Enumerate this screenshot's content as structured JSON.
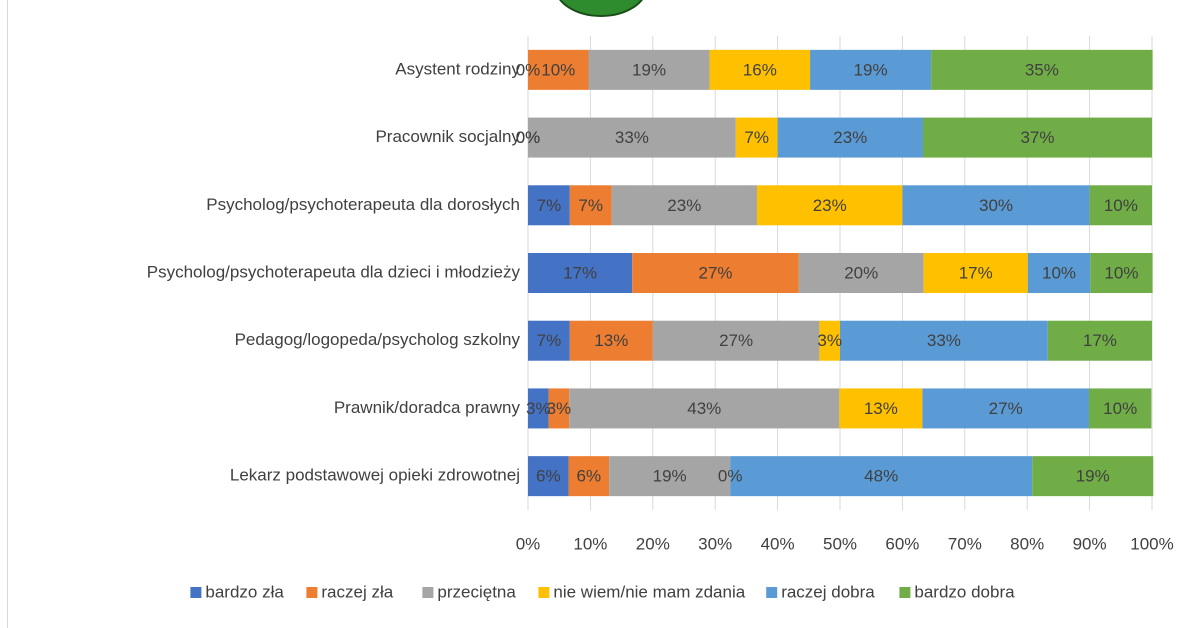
{
  "chart_data": {
    "type": "stacked_bar_horizontal",
    "categories": [
      "Asystent rodziny",
      "Pracownik socjalny",
      "Psycholog/psychoterapeuta dla dorosłych",
      "Psycholog/psychoterapeuta dla dzieci i młodzieży",
      "Pedagog/logopeda/psycholog szkolny",
      "Prawnik/doradca prawny",
      "Lekarz podstawowej opieki zdrowotnej"
    ],
    "series": [
      {
        "name": "bardzo zła",
        "color": "#4472c4",
        "values": [
          0,
          0,
          6.7,
          16.7,
          6.7,
          3.3,
          6.5
        ],
        "value_labels": [
          "0%",
          "0%",
          "7%",
          "17%",
          "7%",
          "3%",
          "6%"
        ]
      },
      {
        "name": "raczej zła",
        "color": "#ed7d31",
        "values": [
          9.7,
          0,
          6.7,
          26.7,
          13.3,
          3.3,
          6.5
        ],
        "value_labels": [
          "10%",
          "0%",
          "7%",
          "27%",
          "13%",
          "3%",
          "6%"
        ]
      },
      {
        "name": "przeciętna",
        "color": "#a5a5a5",
        "values": [
          19.4,
          33.3,
          23.3,
          20,
          26.7,
          43.3,
          19.4
        ],
        "value_labels": [
          "19%",
          "33%",
          "23%",
          "20%",
          "27%",
          "43%",
          "19%"
        ]
      },
      {
        "name": "nie wiem/nie mam zdania",
        "color": "#ffc000",
        "values": [
          16.1,
          6.7,
          23.3,
          16.7,
          3.3,
          13.3,
          0
        ],
        "value_labels": [
          "16%",
          "7%",
          "23%",
          "17%",
          "3%",
          "13%",
          "0%"
        ]
      },
      {
        "name": "raczej dobra",
        "color": "#5b9bd5",
        "values": [
          19.4,
          23.3,
          30,
          10,
          33.3,
          26.7,
          48.4
        ],
        "value_labels": [
          "19%",
          "23%",
          "30%",
          "10%",
          "33%",
          "27%",
          "48%"
        ]
      },
      {
        "name": "bardzo dobra",
        "color": "#70ad47",
        "values": [
          35.5,
          36.7,
          10,
          10,
          16.7,
          10,
          19.4
        ],
        "value_labels": [
          "35%",
          "37%",
          "10%",
          "10%",
          "17%",
          "10%",
          "19%"
        ]
      }
    ],
    "xlim": [
      0,
      100
    ],
    "xticks": [
      {
        "value": 0,
        "label": "0%"
      },
      {
        "value": 10,
        "label": "10%"
      },
      {
        "value": 20,
        "label": "20%"
      },
      {
        "value": 30,
        "label": "30%"
      },
      {
        "value": 40,
        "label": "40%"
      },
      {
        "value": 50,
        "label": "50%"
      },
      {
        "value": 60,
        "label": "60%"
      },
      {
        "value": 70,
        "label": "70%"
      },
      {
        "value": 80,
        "label": "80%"
      },
      {
        "value": 90,
        "label": "90%"
      },
      {
        "value": 100,
        "label": "100%"
      }
    ],
    "grid": true,
    "legend": "bottom"
  }
}
